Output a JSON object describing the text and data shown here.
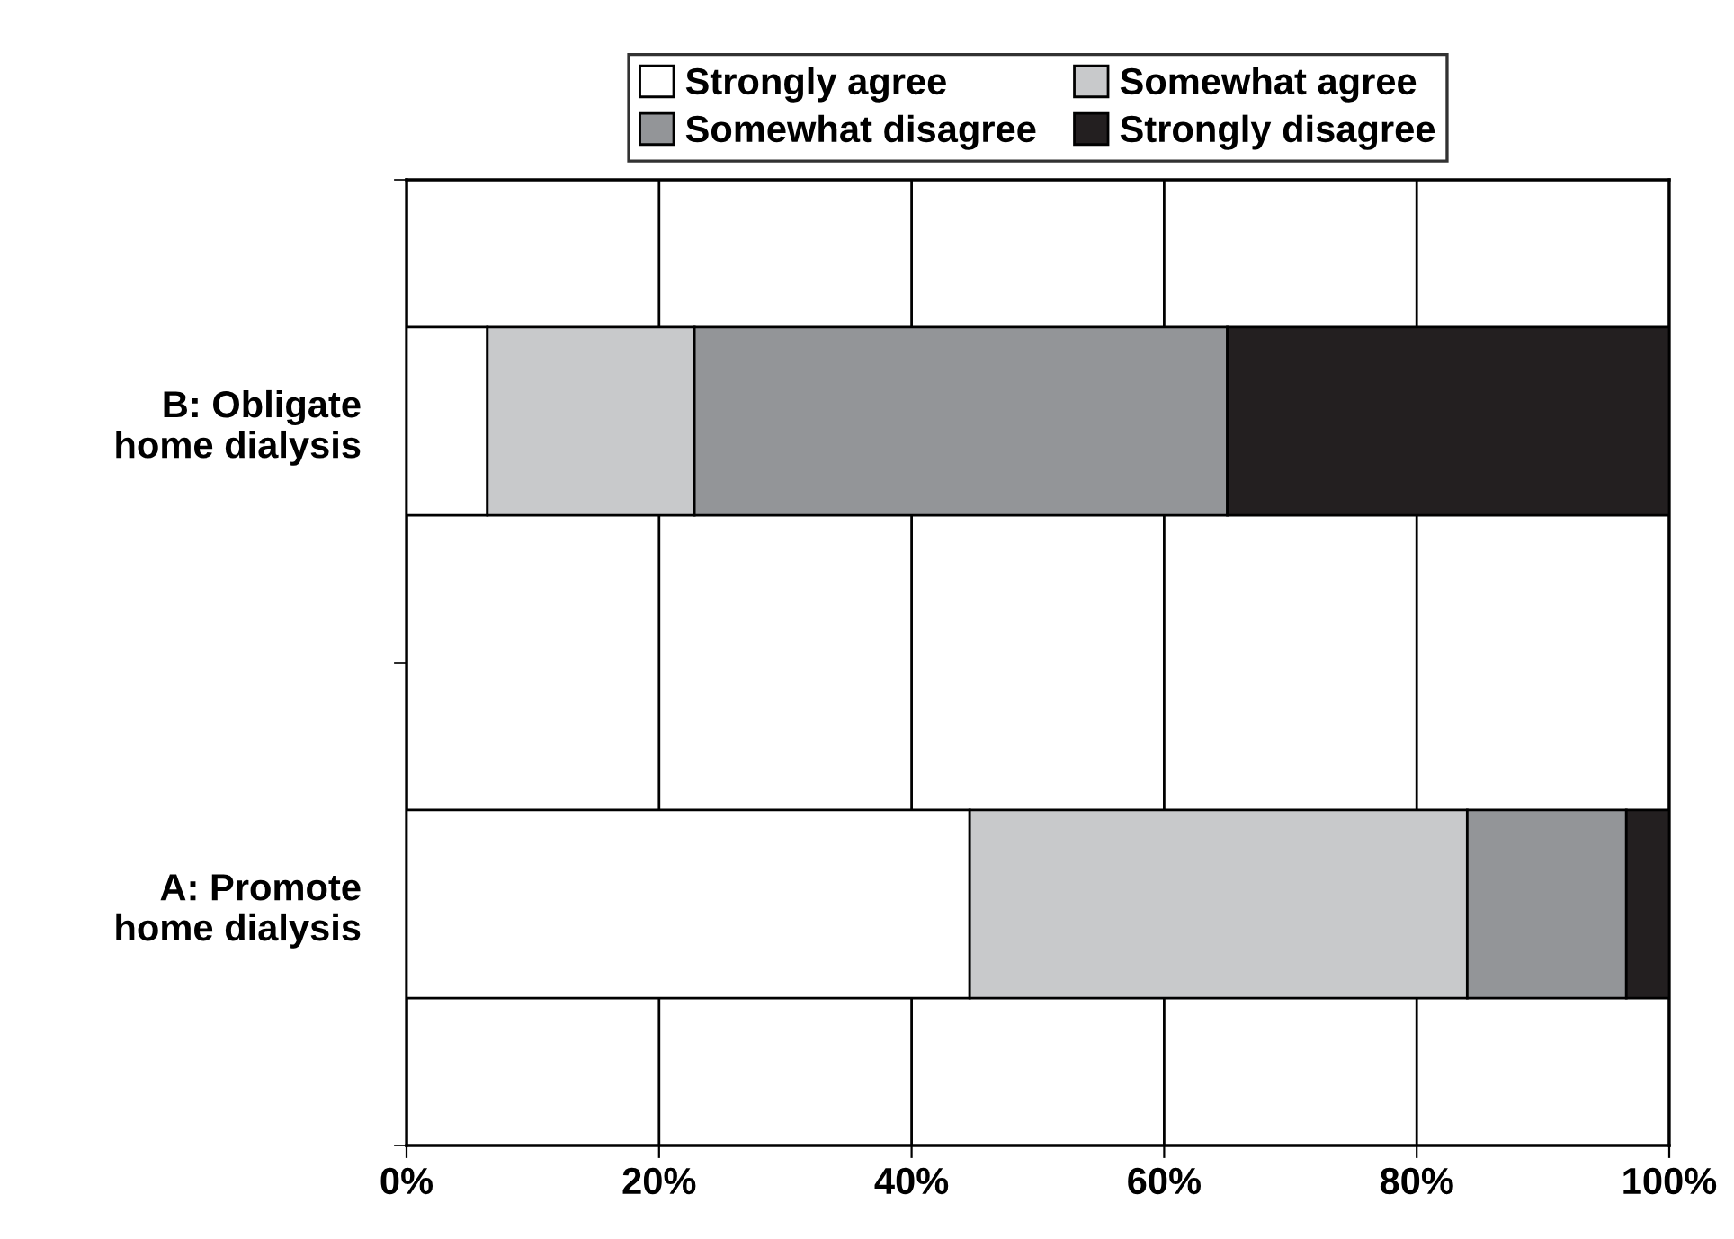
{
  "chart_data": {
    "type": "bar",
    "orientation": "horizontal",
    "stacked": true,
    "categories": [
      "B: Obligate\nhome dialysis",
      "A: Promote\nhome dialysis"
    ],
    "series": [
      {
        "name": "Strongly agree",
        "color": "#ffffff",
        "values": [
          6.4,
          44.6
        ]
      },
      {
        "name": "Somewhat agree",
        "color": "#c8c9cb",
        "values": [
          16.4,
          39.4
        ]
      },
      {
        "name": "Somewhat disagree",
        "color": "#939598",
        "values": [
          42.2,
          12.6
        ]
      },
      {
        "name": "Strongly disagree",
        "color": "#231f20",
        "values": [
          35.0,
          3.4
        ]
      }
    ],
    "xlim": [
      0,
      100
    ],
    "xticks": [
      {
        "value": 0,
        "label": "0%"
      },
      {
        "value": 20,
        "label": "20%"
      },
      {
        "value": 40,
        "label": "40%"
      },
      {
        "value": 60,
        "label": "60%"
      },
      {
        "value": 80,
        "label": "80%"
      },
      {
        "value": 100,
        "label": "100%"
      }
    ],
    "grid": "x",
    "legend": "top"
  }
}
